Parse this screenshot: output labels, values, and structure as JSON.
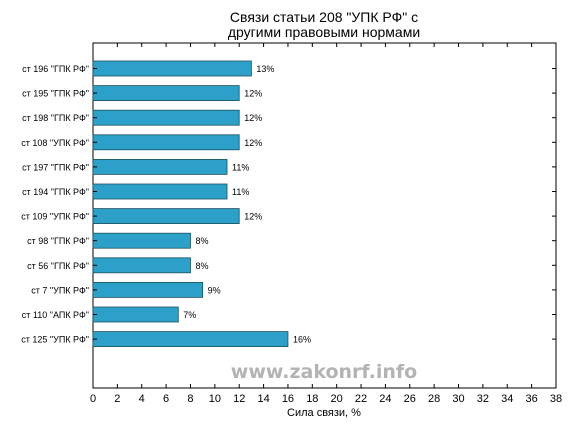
{
  "chart_data": {
    "type": "bar",
    "orientation": "horizontal",
    "title_lines": [
      "Связи статьи 208 \"УПК РФ\" с",
      "другими правовыми нормами"
    ],
    "xlabel": "Сила связи, %",
    "ylabel": "",
    "xlim": [
      0,
      38
    ],
    "xticks": [
      0,
      2,
      4,
      6,
      8,
      10,
      12,
      14,
      16,
      18,
      20,
      22,
      24,
      26,
      28,
      30,
      32,
      34,
      36,
      38
    ],
    "categories": [
      "ст 196 \"ГПК РФ\"",
      "ст 195 \"ГПК РФ\"",
      "ст 198 \"ГПК РФ\"",
      "ст 108 \"УПК РФ\"",
      "ст 197 \"ГПК РФ\"",
      "ст 194 \"ГПК РФ\"",
      "ст 109 \"УПК РФ\"",
      "ст 98 \"ГПК РФ\"",
      "ст 56 \"ГПК РФ\"",
      "ст 7 \"УПК РФ\"",
      "ст 110 \"АПК РФ\"",
      "ст 125 \"УПК РФ\""
    ],
    "values": [
      13,
      12,
      12,
      12,
      11,
      11,
      12,
      8,
      8,
      9,
      7,
      16
    ],
    "value_labels": [
      "13%",
      "12%",
      "12%",
      "12%",
      "11%",
      "11%",
      "12%",
      "8%",
      "8%",
      "9%",
      "7%",
      "16%"
    ],
    "bar_color": "#2ca0c8",
    "bar_edge_color": "#1d4f5f",
    "grid": false,
    "legend": "none"
  },
  "watermark": "www.zakonrf.info"
}
